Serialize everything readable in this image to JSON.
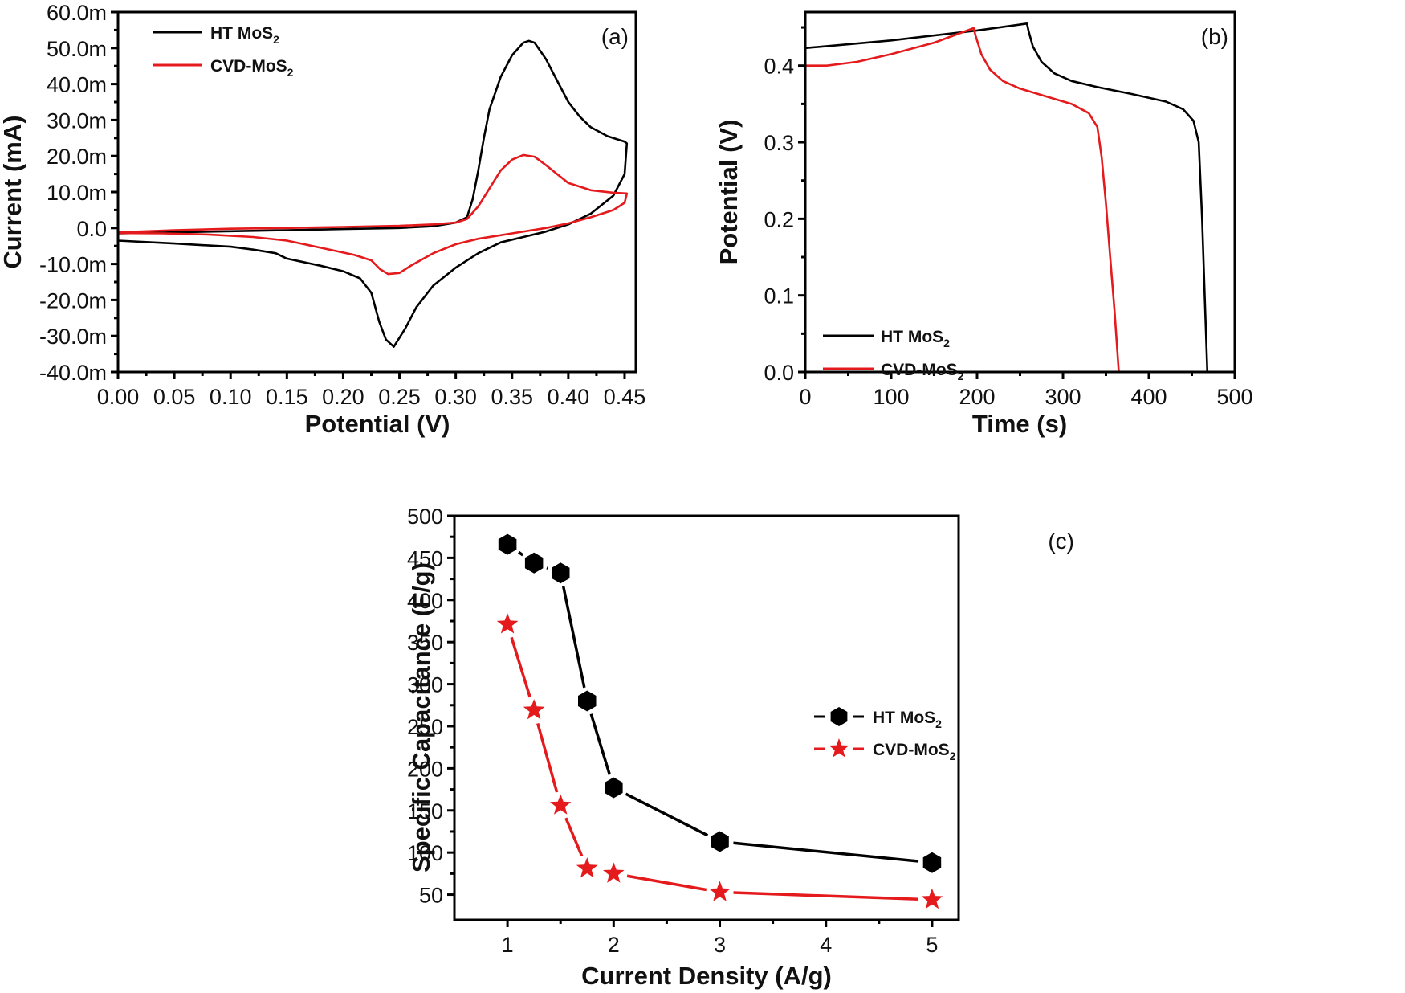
{
  "chart_data": [
    {
      "id": "a",
      "type": "line",
      "panel_label": "(a)",
      "xlabel": "Potential (V)",
      "ylabel": "Current (mA)",
      "xlim": [
        0.0,
        0.46
      ],
      "ylim": [
        -40,
        60
      ],
      "xticks": [
        0.0,
        0.05,
        0.1,
        0.15,
        0.2,
        0.25,
        0.3,
        0.35,
        0.4,
        0.45
      ],
      "xtick_labels": [
        "0.00",
        "0.05",
        "0.10",
        "0.15",
        "0.20",
        "0.25",
        "0.30",
        "0.35",
        "0.40",
        "0.45"
      ],
      "yticks": [
        -40,
        -30,
        -20,
        -10,
        0,
        10,
        20,
        30,
        40,
        50,
        60
      ],
      "ytick_labels": [
        "-40.0m",
        "-30.0m",
        "-20.0m",
        "-10.0m",
        "0.0",
        "10.0m",
        "20.0m",
        "30.0m",
        "40.0m",
        "50.0m",
        "60.0m"
      ],
      "legend_position": "top-left",
      "legend": [
        {
          "label": "HT MoS",
          "sub": "2",
          "color": "#000000"
        },
        {
          "label": "CVD-MoS",
          "sub": "2",
          "color": "#e41a1c"
        }
      ],
      "series": [
        {
          "name": "HT MoS2",
          "color": "#000000",
          "points": [
            [
              0.0,
              -1.5
            ],
            [
              0.05,
              -1.2
            ],
            [
              0.1,
              -0.9
            ],
            [
              0.15,
              -0.6
            ],
            [
              0.2,
              -0.3
            ],
            [
              0.25,
              0.0
            ],
            [
              0.28,
              0.5
            ],
            [
              0.3,
              1.5
            ],
            [
              0.31,
              3
            ],
            [
              0.315,
              8
            ],
            [
              0.32,
              16
            ],
            [
              0.325,
              25
            ],
            [
              0.33,
              33
            ],
            [
              0.34,
              42
            ],
            [
              0.35,
              48
            ],
            [
              0.36,
              51.5
            ],
            [
              0.365,
              52
            ],
            [
              0.37,
              51.5
            ],
            [
              0.38,
              47
            ],
            [
              0.39,
              41
            ],
            [
              0.4,
              35
            ],
            [
              0.41,
              31
            ],
            [
              0.42,
              28
            ],
            [
              0.435,
              25.5
            ],
            [
              0.45,
              24
            ],
            [
              0.452,
              23.5
            ],
            [
              0.45,
              15
            ],
            [
              0.44,
              9
            ],
            [
              0.42,
              4
            ],
            [
              0.4,
              1
            ],
            [
              0.38,
              -1
            ],
            [
              0.36,
              -2.5
            ],
            [
              0.34,
              -4
            ],
            [
              0.32,
              -7
            ],
            [
              0.3,
              -11
            ],
            [
              0.28,
              -16
            ],
            [
              0.265,
              -22
            ],
            [
              0.255,
              -28
            ],
            [
              0.245,
              -33
            ],
            [
              0.238,
              -31
            ],
            [
              0.232,
              -26
            ],
            [
              0.225,
              -18
            ],
            [
              0.215,
              -14
            ],
            [
              0.2,
              -12
            ],
            [
              0.18,
              -10.5
            ],
            [
              0.15,
              -8.5
            ],
            [
              0.14,
              -7
            ],
            [
              0.12,
              -6
            ],
            [
              0.1,
              -5.2
            ],
            [
              0.05,
              -4.3
            ],
            [
              0.0,
              -3.5
            ]
          ]
        },
        {
          "name": "CVD-MoS2",
          "color": "#e41a1c",
          "points": [
            [
              0.0,
              -1.2
            ],
            [
              0.05,
              -0.6
            ],
            [
              0.1,
              -0.2
            ],
            [
              0.15,
              0.0
            ],
            [
              0.2,
              0.3
            ],
            [
              0.25,
              0.6
            ],
            [
              0.28,
              1.0
            ],
            [
              0.3,
              1.5
            ],
            [
              0.31,
              2.5
            ],
            [
              0.32,
              6
            ],
            [
              0.33,
              11
            ],
            [
              0.34,
              16
            ],
            [
              0.35,
              19
            ],
            [
              0.36,
              20.3
            ],
            [
              0.37,
              19.8
            ],
            [
              0.38,
              17.5
            ],
            [
              0.39,
              15
            ],
            [
              0.4,
              12.5
            ],
            [
              0.42,
              10.5
            ],
            [
              0.44,
              9.8
            ],
            [
              0.452,
              9.6
            ],
            [
              0.45,
              7
            ],
            [
              0.44,
              5
            ],
            [
              0.42,
              3
            ],
            [
              0.4,
              1.3
            ],
            [
              0.38,
              0
            ],
            [
              0.35,
              -1.5
            ],
            [
              0.32,
              -3
            ],
            [
              0.3,
              -4.5
            ],
            [
              0.28,
              -7
            ],
            [
              0.26,
              -10.5
            ],
            [
              0.25,
              -12.5
            ],
            [
              0.24,
              -12.8
            ],
            [
              0.233,
              -11.5
            ],
            [
              0.225,
              -9
            ],
            [
              0.21,
              -7.5
            ],
            [
              0.18,
              -5.5
            ],
            [
              0.15,
              -3.5
            ],
            [
              0.12,
              -2.5
            ],
            [
              0.08,
              -1.8
            ],
            [
              0.04,
              -1.5
            ],
            [
              0.0,
              -1.4
            ]
          ]
        }
      ]
    },
    {
      "id": "b",
      "type": "line",
      "panel_label": "(b)",
      "xlabel": "Time (s)",
      "ylabel": "Potential (V)",
      "xlim": [
        0,
        500
      ],
      "ylim": [
        0.0,
        0.47
      ],
      "xticks": [
        0,
        100,
        200,
        300,
        400,
        500
      ],
      "xtick_labels": [
        "0",
        "100",
        "200",
        "300",
        "400",
        "500"
      ],
      "yticks": [
        0.0,
        0.1,
        0.2,
        0.3,
        0.4
      ],
      "ytick_labels": [
        "0.0",
        "0.1",
        "0.2",
        "0.3",
        "0.4"
      ],
      "legend_position": "bottom-left",
      "legend": [
        {
          "label": "HT MoS",
          "sub": "2",
          "color": "#000000"
        },
        {
          "label": "CVD-MoS",
          "sub": "2",
          "color": "#e41a1c"
        }
      ],
      "series": [
        {
          "name": "HT MoS2",
          "color": "#000000",
          "points": [
            [
              0,
              0.423
            ],
            [
              100,
              0.433
            ],
            [
              200,
              0.446
            ],
            [
              258,
              0.455
            ],
            [
              260,
              0.445
            ],
            [
              265,
              0.425
            ],
            [
              275,
              0.405
            ],
            [
              290,
              0.39
            ],
            [
              310,
              0.38
            ],
            [
              340,
              0.372
            ],
            [
              380,
              0.363
            ],
            [
              420,
              0.353
            ],
            [
              440,
              0.343
            ],
            [
              452,
              0.328
            ],
            [
              458,
              0.3
            ],
            [
              462,
              0.2
            ],
            [
              465,
              0.1
            ],
            [
              468,
              0.0
            ]
          ]
        },
        {
          "name": "CVD-MoS2",
          "color": "#e41a1c",
          "points": [
            [
              0,
              0.4
            ],
            [
              25,
              0.4
            ],
            [
              60,
              0.405
            ],
            [
              100,
              0.415
            ],
            [
              150,
              0.43
            ],
            [
              196,
              0.449
            ],
            [
              198,
              0.44
            ],
            [
              205,
              0.415
            ],
            [
              215,
              0.395
            ],
            [
              230,
              0.38
            ],
            [
              250,
              0.37
            ],
            [
              280,
              0.36
            ],
            [
              310,
              0.35
            ],
            [
              330,
              0.338
            ],
            [
              340,
              0.32
            ],
            [
              345,
              0.28
            ],
            [
              350,
              0.22
            ],
            [
              355,
              0.15
            ],
            [
              360,
              0.08
            ],
            [
              365,
              0.0
            ]
          ]
        }
      ]
    },
    {
      "id": "c",
      "type": "line",
      "panel_label": "(c)",
      "xlabel": "Current Density (A/g)",
      "ylabel": "Specific Capacitance (F/g)",
      "xlim": [
        0.5,
        5.25
      ],
      "ylim": [
        20,
        500
      ],
      "xticks": [
        1,
        2,
        3,
        4,
        5
      ],
      "xtick_labels": [
        "1",
        "2",
        "3",
        "4",
        "5"
      ],
      "yticks": [
        50,
        100,
        150,
        200,
        250,
        300,
        350,
        400,
        450,
        500
      ],
      "ytick_labels": [
        "50",
        "100",
        "150",
        "200",
        "250",
        "300",
        "350",
        "400",
        "450",
        "500"
      ],
      "legend_position": "center-right",
      "legend": [
        {
          "label": "HT MoS",
          "sub": "2",
          "color": "#000000",
          "marker": "hexagon"
        },
        {
          "label": "CVD-MoS",
          "sub": "2",
          "color": "#e41a1c",
          "marker": "star"
        }
      ],
      "series": [
        {
          "name": "HT MoS2",
          "color": "#000000",
          "marker": "hexagon",
          "x": [
            1,
            1.25,
            1.5,
            1.75,
            2,
            3,
            5
          ],
          "values": [
            466,
            444,
            432,
            280,
            177,
            113,
            88
          ]
        },
        {
          "name": "CVD-MoS2",
          "color": "#e41a1c",
          "marker": "star",
          "x": [
            1,
            1.25,
            1.5,
            1.75,
            2,
            3,
            5
          ],
          "values": [
            371,
            269,
            156,
            81,
            75,
            53,
            44
          ]
        }
      ]
    }
  ]
}
